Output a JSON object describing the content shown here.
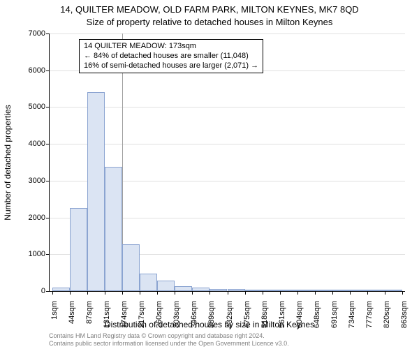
{
  "supertitle": "14, QUILTER MEADOW, OLD FARM PARK, MILTON KEYNES, MK7 8QD",
  "title": "Size of property relative to detached houses in Milton Keynes",
  "ylabel": "Number of detached properties",
  "xlabel": "Distribution of detached houses by size in Milton Keynes",
  "credits_line1": "Contains HM Land Registry data © Crown copyright and database right 2024.",
  "credits_line2": "Contains public sector information licensed under the Open Government Licence v3.0.",
  "annotation": {
    "line1": "14 QUILTER MEADOW: 173sqm",
    "line2": "← 84% of detached houses are smaller (11,048)",
    "line3": "16% of semi-detached houses are larger (2,071) →"
  },
  "chart": {
    "type": "histogram",
    "background_color": "#ffffff",
    "grid_color": "#e0e0e0",
    "bar_fill": "#dbe4f3",
    "bar_border": "#8ba4d1",
    "ylim": [
      0,
      7000
    ],
    "yticks": [
      0,
      1000,
      2000,
      3000,
      4000,
      5000,
      6000,
      7000
    ],
    "xtick_labels": [
      "1sqm",
      "44sqm",
      "87sqm",
      "131sqm",
      "174sqm",
      "217sqm",
      "260sqm",
      "303sqm",
      "346sqm",
      "389sqm",
      "432sqm",
      "475sqm",
      "518sqm",
      "561sqm",
      "604sqm",
      "648sqm",
      "691sqm",
      "734sqm",
      "777sqm",
      "820sqm",
      "863sqm"
    ],
    "bars": [
      90,
      2260,
      5400,
      3380,
      1280,
      470,
      280,
      140,
      90,
      60,
      50,
      40,
      30,
      30,
      20,
      20,
      15,
      15,
      10,
      10
    ],
    "marker_bin_index": 4,
    "title_fontsize": 13,
    "label_fontsize": 12,
    "tick_fontsize": 11,
    "anno_fontsize": 11,
    "credits_fontsize": 9,
    "credits_color": "#808080"
  }
}
